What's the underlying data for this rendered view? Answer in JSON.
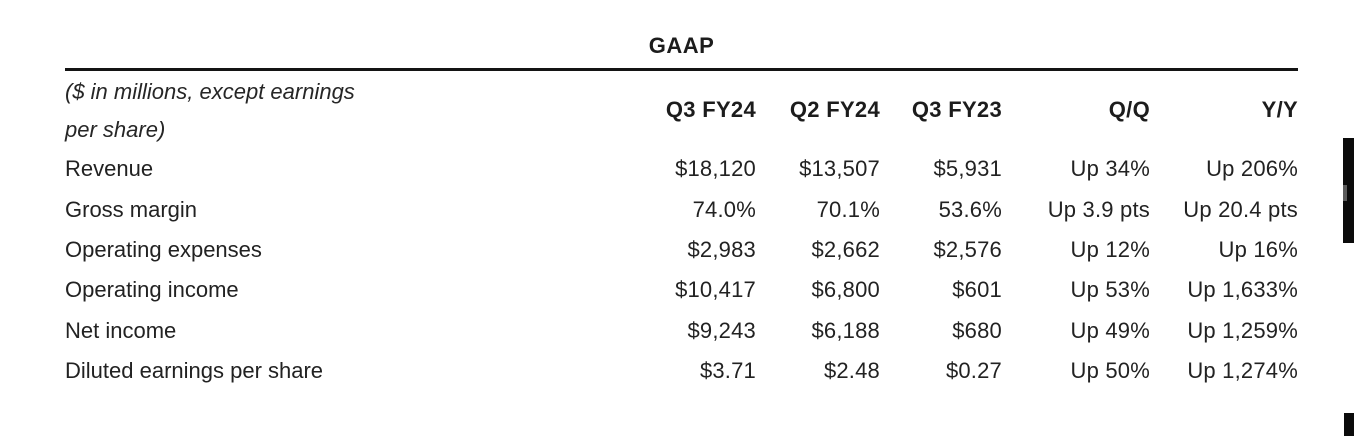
{
  "title": "GAAP",
  "table": {
    "note_line1": "($ in millions, except earnings",
    "note_line2": "per share)",
    "columns": [
      "Q3 FY24",
      "Q2 FY24",
      "Q3 FY23",
      "Q/Q",
      "Y/Y"
    ],
    "rows": [
      {
        "label": "Revenue",
        "values": [
          "$18,120",
          "$13,507",
          "$5,931",
          "Up 34%",
          "Up 206%"
        ]
      },
      {
        "label": "Gross margin",
        "values": [
          "74.0%",
          "70.1%",
          "53.6%",
          "Up 3.9 pts",
          "Up 20.4 pts"
        ]
      },
      {
        "label": "Operating expenses",
        "values": [
          "$2,983",
          "$2,662",
          "$2,576",
          "Up 12%",
          "Up 16%"
        ]
      },
      {
        "label": "Operating income",
        "values": [
          "$10,417",
          "$6,800",
          "$601",
          "Up 53%",
          "Up 1,633%"
        ]
      },
      {
        "label": "Net income",
        "values": [
          "$9,243",
          "$6,188",
          "$680",
          "Up 49%",
          "Up 1,259%"
        ]
      },
      {
        "label": "Diluted earnings per share",
        "values": [
          "$3.71",
          "$2.48",
          "$0.27",
          "Up 50%",
          "Up 1,274%"
        ]
      }
    ]
  },
  "colors": {
    "text": "#212121",
    "rule": "#141414",
    "scrollbar": "#0b0b0b"
  }
}
